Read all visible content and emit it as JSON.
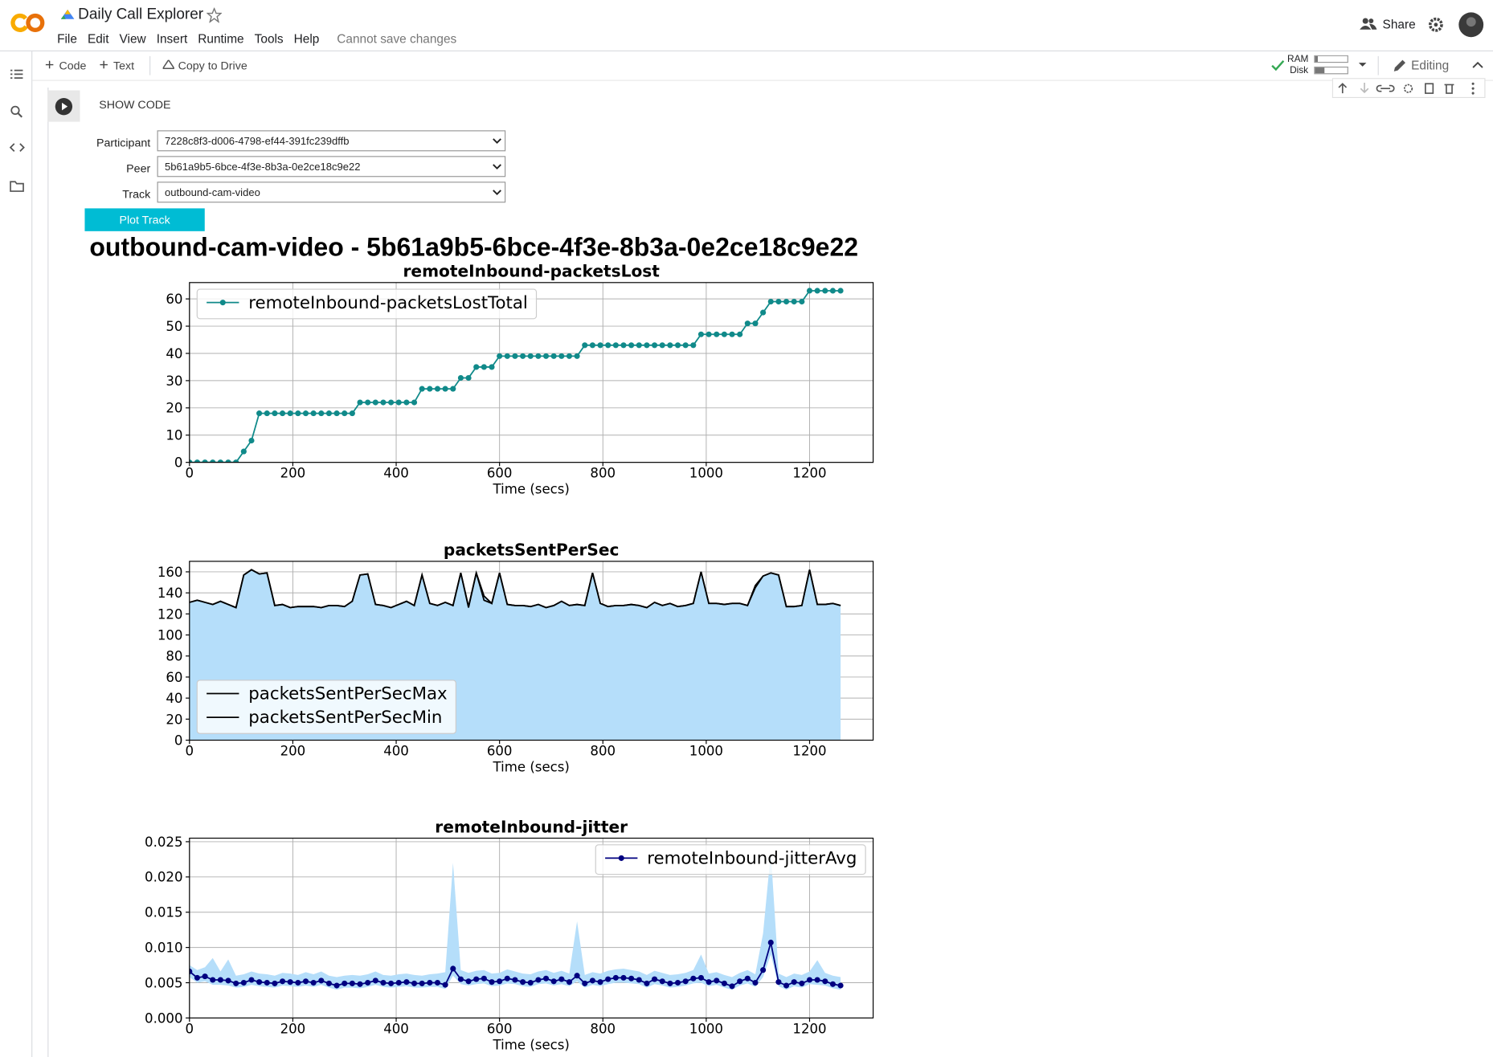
{
  "app": {
    "name": "Daily Call Explorer",
    "menu": [
      "File",
      "Edit",
      "View",
      "Insert",
      "Runtime",
      "Tools",
      "Help"
    ],
    "save_status": "Cannot save changes",
    "share": "Share"
  },
  "toolbar": {
    "code": "Code",
    "text": "Text",
    "copy": "Copy to Drive",
    "ram": "RAM",
    "disk": "Disk",
    "mode": "Editing"
  },
  "cell": {
    "show_code": "SHOW CODE",
    "form": [
      {
        "label": "Participant",
        "value": "7228c8f3-d006-4798-ef44-391fc239dffb"
      },
      {
        "label": "Peer",
        "value": "5b61a9b5-6bce-4f3e-8b3a-0e2ce18c9e22"
      },
      {
        "label": "Track",
        "value": "outbound-cam-video"
      }
    ],
    "button": "Plot Track",
    "heading": "outbound-cam-video - 5b61a9b5-6bce-4f3e-8b3a-0e2ce18c9e22"
  },
  "chart_data": [
    {
      "type": "line",
      "title": "remoteInbound-packetsLost",
      "x_label": "Time (secs)",
      "grid": true,
      "legend": "upper left",
      "xlim": [
        0,
        1323
      ],
      "xticks": [
        0,
        200,
        400,
        600,
        800,
        1000,
        1200
      ],
      "ylim": [
        0,
        66
      ],
      "yticks": [
        0,
        10,
        20,
        30,
        40,
        50,
        60
      ],
      "x": [
        0,
        15,
        30,
        45,
        60,
        75,
        90,
        105,
        120,
        135,
        150,
        165,
        180,
        195,
        210,
        225,
        240,
        255,
        270,
        285,
        300,
        315,
        330,
        345,
        360,
        375,
        390,
        405,
        420,
        435,
        450,
        465,
        480,
        495,
        510,
        525,
        540,
        555,
        570,
        585,
        600,
        615,
        630,
        645,
        660,
        675,
        690,
        705,
        720,
        735,
        750,
        765,
        780,
        795,
        810,
        825,
        840,
        855,
        870,
        885,
        900,
        915,
        930,
        945,
        960,
        975,
        990,
        1005,
        1020,
        1035,
        1050,
        1065,
        1080,
        1095,
        1110,
        1125,
        1140,
        1155,
        1170,
        1185,
        1200,
        1215,
        1230,
        1245,
        1260
      ],
      "series": [
        {
          "name": "remoteInbound-packetsLostTotal",
          "color": "#108a8a",
          "marker": "o",
          "values": [
            0,
            0,
            0,
            0,
            0,
            0,
            0,
            4,
            8,
            18,
            18,
            18,
            18,
            18,
            18,
            18,
            18,
            18,
            18,
            18,
            18,
            18,
            22,
            22,
            22,
            22,
            22,
            22,
            22,
            22,
            27,
            27,
            27,
            27,
            27,
            31,
            31,
            35,
            35,
            35,
            39,
            39,
            39,
            39,
            39,
            39,
            39,
            39,
            39,
            39,
            39,
            43,
            43,
            43,
            43,
            43,
            43,
            43,
            43,
            43,
            43,
            43,
            43,
            43,
            43,
            43,
            47,
            47,
            47,
            47,
            47,
            47,
            51,
            51,
            55,
            59,
            59,
            59,
            59,
            59,
            63,
            63,
            63,
            63,
            63
          ]
        }
      ]
    },
    {
      "type": "area",
      "title": "packetsSentPerSec",
      "x_label": "Time (secs)",
      "grid": true,
      "legend": "lower left",
      "area_color": "#b5defa",
      "xlim": [
        0,
        1323
      ],
      "xticks": [
        0,
        200,
        400,
        600,
        800,
        1000,
        1200
      ],
      "ylim": [
        0,
        170
      ],
      "yticks": [
        0,
        20,
        40,
        60,
        80,
        100,
        120,
        140,
        160
      ],
      "x": [
        0,
        15,
        30,
        45,
        60,
        75,
        90,
        105,
        120,
        135,
        150,
        165,
        180,
        195,
        210,
        225,
        240,
        255,
        270,
        285,
        300,
        315,
        330,
        345,
        360,
        375,
        390,
        405,
        420,
        435,
        450,
        465,
        480,
        495,
        510,
        525,
        540,
        555,
        570,
        585,
        600,
        615,
        630,
        645,
        660,
        675,
        690,
        705,
        720,
        735,
        750,
        765,
        780,
        795,
        810,
        825,
        840,
        855,
        870,
        885,
        900,
        915,
        930,
        945,
        960,
        975,
        990,
        1005,
        1020,
        1035,
        1050,
        1065,
        1080,
        1095,
        1110,
        1125,
        1140,
        1155,
        1170,
        1185,
        1200,
        1215,
        1230,
        1245,
        1260
      ],
      "series": [
        {
          "name": "packetsSentPerSecMax",
          "color": "#000000",
          "values": [
            131,
            133,
            131,
            129,
            132,
            129,
            126,
            157,
            162,
            158,
            159,
            128,
            129,
            126,
            127,
            127,
            127,
            126,
            128,
            128,
            127,
            132,
            157,
            158,
            129,
            128,
            126,
            129,
            132,
            128,
            157,
            130,
            128,
            131,
            128,
            159,
            127,
            159,
            137,
            130,
            159,
            129,
            128,
            128,
            127,
            129,
            126,
            128,
            132,
            128,
            129,
            128,
            159,
            130,
            127,
            128,
            128,
            129,
            128,
            126,
            131,
            128,
            130,
            127,
            128,
            130,
            160,
            130,
            130,
            129,
            130,
            130,
            128,
            147,
            156,
            159,
            157,
            127,
            127,
            128,
            162,
            129,
            129,
            130,
            128
          ]
        },
        {
          "name": "packetsSentPerSecMin",
          "color": "#000000",
          "values": [
            131,
            133,
            131,
            129,
            132,
            129,
            126,
            157,
            162,
            158,
            159,
            128,
            129,
            126,
            127,
            127,
            127,
            126,
            128,
            128,
            127,
            132,
            157,
            158,
            129,
            128,
            126,
            129,
            132,
            128,
            157,
            130,
            128,
            131,
            128,
            159,
            126,
            159,
            133,
            130,
            159,
            129,
            128,
            128,
            127,
            129,
            126,
            128,
            132,
            128,
            129,
            128,
            159,
            130,
            127,
            128,
            128,
            129,
            128,
            126,
            131,
            128,
            130,
            127,
            128,
            130,
            160,
            130,
            130,
            129,
            130,
            130,
            128,
            145,
            156,
            159,
            157,
            127,
            127,
            128,
            162,
            129,
            129,
            130,
            128
          ]
        }
      ]
    },
    {
      "type": "line",
      "title": "remoteInbound-jitter",
      "x_label": "Time (secs)",
      "grid": true,
      "legend": "upper right",
      "xlim": [
        0,
        1323
      ],
      "xticks": [
        0,
        200,
        400,
        600,
        800,
        1000,
        1200
      ],
      "ylim": [
        0,
        0.0255
      ],
      "yticks": [
        {
          "value": 0,
          "label": "0.000"
        },
        {
          "value": 0.005,
          "label": "0.005"
        },
        {
          "value": 0.01,
          "label": "0.010"
        },
        {
          "value": 0.015,
          "label": "0.015"
        },
        {
          "value": 0.02,
          "label": "0.020"
        },
        {
          "value": 0.025,
          "label": "0.025"
        }
      ],
      "x": [
        0,
        15,
        30,
        45,
        60,
        75,
        90,
        105,
        120,
        135,
        150,
        165,
        180,
        195,
        210,
        225,
        240,
        255,
        270,
        285,
        300,
        315,
        330,
        345,
        360,
        375,
        390,
        405,
        420,
        435,
        450,
        465,
        480,
        495,
        510,
        525,
        540,
        555,
        570,
        585,
        600,
        615,
        630,
        645,
        660,
        675,
        690,
        705,
        720,
        735,
        750,
        765,
        780,
        795,
        810,
        825,
        840,
        855,
        870,
        885,
        900,
        915,
        930,
        945,
        960,
        975,
        990,
        1005,
        1020,
        1035,
        1050,
        1065,
        1080,
        1095,
        1110,
        1125,
        1140,
        1155,
        1170,
        1185,
        1200,
        1215,
        1230,
        1245,
        1260
      ],
      "band": {
        "color": "#b5defa",
        "upper": [
          0.0075,
          0.0068,
          0.0072,
          0.0085,
          0.0066,
          0.0083,
          0.006,
          0.0062,
          0.0066,
          0.0063,
          0.0062,
          0.006,
          0.0064,
          0.0063,
          0.0061,
          0.0065,
          0.0062,
          0.0066,
          0.006,
          0.0058,
          0.006,
          0.0061,
          0.006,
          0.0062,
          0.0066,
          0.0061,
          0.006,
          0.0062,
          0.0063,
          0.0061,
          0.006,
          0.0062,
          0.0063,
          0.0065,
          0.022,
          0.0068,
          0.0064,
          0.0067,
          0.0068,
          0.0063,
          0.0064,
          0.0069,
          0.0066,
          0.0063,
          0.0062,
          0.0066,
          0.0068,
          0.0064,
          0.0067,
          0.0063,
          0.0137,
          0.0061,
          0.0065,
          0.0063,
          0.0067,
          0.0069,
          0.007,
          0.0068,
          0.0066,
          0.0061,
          0.0067,
          0.0064,
          0.0061,
          0.0062,
          0.0064,
          0.0068,
          0.009,
          0.0063,
          0.0065,
          0.0061,
          0.0058,
          0.0064,
          0.0068,
          0.0062,
          0.012,
          0.0235,
          0.0063,
          0.0058,
          0.0063,
          0.0061,
          0.0066,
          0.0082,
          0.0064,
          0.006,
          0.0058
        ],
        "lower": [
          0.0058,
          0.005,
          0.0052,
          0.0047,
          0.0047,
          0.0046,
          0.0043,
          0.0044,
          0.0047,
          0.0045,
          0.0044,
          0.0043,
          0.0046,
          0.0045,
          0.0044,
          0.0046,
          0.0044,
          0.0047,
          0.0043,
          0.004,
          0.0043,
          0.0043,
          0.0042,
          0.0044,
          0.0047,
          0.0044,
          0.0043,
          0.0044,
          0.0045,
          0.0043,
          0.0043,
          0.0044,
          0.0044,
          0.0041,
          0.006,
          0.0048,
          0.0046,
          0.0048,
          0.0049,
          0.0045,
          0.0046,
          0.0049,
          0.0048,
          0.0045,
          0.0044,
          0.0048,
          0.0049,
          0.0046,
          0.0048,
          0.0045,
          0.0052,
          0.0043,
          0.0047,
          0.0045,
          0.0048,
          0.005,
          0.005,
          0.0049,
          0.0048,
          0.0043,
          0.0048,
          0.0046,
          0.0043,
          0.0044,
          0.0046,
          0.0049,
          0.005,
          0.0045,
          0.0047,
          0.0043,
          0.004,
          0.0046,
          0.0049,
          0.0044,
          0.0058,
          0.009,
          0.0045,
          0.004,
          0.0045,
          0.0043,
          0.0048,
          0.0047,
          0.0046,
          0.0042,
          0.004
        ]
      },
      "series": [
        {
          "name": "remoteInbound-jitterAvg",
          "color": "#000080",
          "marker": "o",
          "values": [
            0.0066,
            0.0057,
            0.0059,
            0.0054,
            0.0054,
            0.0053,
            0.0049,
            0.005,
            0.0054,
            0.0051,
            0.005,
            0.0049,
            0.0052,
            0.0051,
            0.005,
            0.0052,
            0.005,
            0.0053,
            0.0049,
            0.0046,
            0.0049,
            0.0049,
            0.0048,
            0.005,
            0.0053,
            0.005,
            0.0049,
            0.005,
            0.0051,
            0.0049,
            0.0049,
            0.005,
            0.005,
            0.0047,
            0.007,
            0.0055,
            0.0052,
            0.0055,
            0.0056,
            0.0051,
            0.0052,
            0.0056,
            0.0054,
            0.0051,
            0.005,
            0.0054,
            0.0056,
            0.0052,
            0.0055,
            0.0051,
            0.006,
            0.0049,
            0.0053,
            0.0051,
            0.0055,
            0.0057,
            0.0057,
            0.0056,
            0.0054,
            0.0049,
            0.0055,
            0.0052,
            0.0049,
            0.005,
            0.0052,
            0.0056,
            0.0057,
            0.0051,
            0.0053,
            0.0049,
            0.0045,
            0.0052,
            0.0056,
            0.005,
            0.0068,
            0.0107,
            0.0051,
            0.0046,
            0.0051,
            0.0049,
            0.0054,
            0.0054,
            0.0052,
            0.0048,
            0.0046
          ]
        }
      ]
    }
  ]
}
